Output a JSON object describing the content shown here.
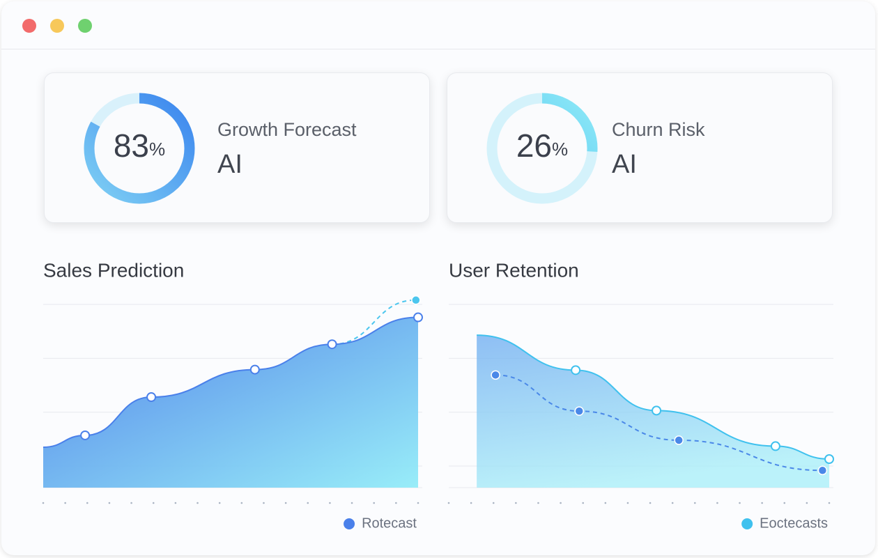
{
  "cards": [
    {
      "value": 83,
      "unit": "%",
      "label": "Growth Forecast",
      "sub": "AI",
      "colors": [
        "#7fd0f4",
        "#3a84ee"
      ],
      "track": "#d9f1fb"
    },
    {
      "value": 26,
      "unit": "%",
      "label": "Churn Risk",
      "sub": "AI",
      "colors": [
        "#49bff0",
        "#8ee9f7"
      ],
      "track": "#d4f2fb"
    }
  ],
  "chart_data": [
    {
      "type": "area",
      "title": "Sales Prediction",
      "xlim": [
        0,
        17
      ],
      "xticks": [
        0,
        1,
        2,
        3,
        4,
        5,
        6,
        7,
        8,
        9,
        10,
        11,
        12,
        13,
        14,
        15,
        16,
        17
      ],
      "ylim": [
        -0.4,
        3.2
      ],
      "yticks": [
        0,
        1,
        2,
        3
      ],
      "grid": true,
      "fill": [
        "#4a7de8",
        "#93ecf8"
      ],
      "series": [
        {
          "name": "Rotecast",
          "color": "#4a80ea",
          "x": [
            0,
            1.9,
            4.9,
            9.6,
            13.1,
            17
          ],
          "values": [
            0.35,
            0.57,
            1.28,
            1.79,
            2.26,
            2.76
          ]
        },
        {
          "color": "#4cc6ee",
          "style": "dashed",
          "x": [
            13.1,
            16.9
          ],
          "values": [
            2.26,
            3.08
          ]
        }
      ]
    },
    {
      "type": "area",
      "title": "User Retention",
      "xlim": [
        0,
        17
      ],
      "xticks": [
        0,
        1,
        2,
        3,
        4,
        5,
        6,
        7,
        8,
        9,
        10,
        11,
        12,
        13,
        14,
        15,
        16,
        17
      ],
      "ylim": [
        -0.4,
        3.2
      ],
      "yticks": [
        0,
        1,
        2,
        3
      ],
      "grid": true,
      "fill": [
        "#6aaaf0",
        "#a6eef8"
      ],
      "series": [
        {
          "name": "Eoctecasts",
          "color": "#3fc1ee",
          "x": [
            1.25,
            5.67,
            9.28,
            14.6,
            17
          ],
          "values": [
            2.43,
            1.78,
            1.03,
            0.37,
            0.13
          ]
        },
        {
          "color": "#4a88e8",
          "style": "dashed",
          "x": [
            2.09,
            5.83,
            10.28,
            16.7
          ],
          "values": [
            1.69,
            1.02,
            0.48,
            -0.08
          ]
        }
      ]
    }
  ]
}
